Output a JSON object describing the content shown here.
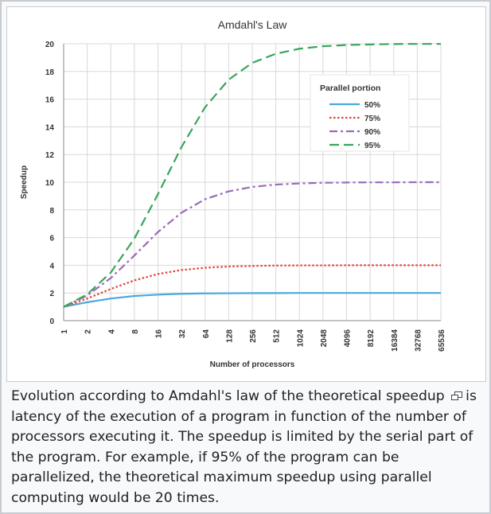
{
  "chart_data": {
    "type": "line",
    "title": "Amdahl's Law",
    "xlabel": "Number of processors",
    "ylabel": "Speedup",
    "x_scale": "log2",
    "x": [
      1,
      2,
      4,
      8,
      16,
      32,
      64,
      128,
      256,
      512,
      1024,
      2048,
      4096,
      8192,
      16384,
      32768,
      65536
    ],
    "x_tick_labels": [
      "1",
      "2",
      "4",
      "8",
      "16",
      "32",
      "64",
      "128",
      "256",
      "512",
      "1024",
      "2048",
      "4096",
      "8192",
      "16384",
      "32768",
      "65536"
    ],
    "ylim": [
      0,
      20
    ],
    "y_ticks": [
      0,
      2,
      4,
      6,
      8,
      10,
      12,
      14,
      16,
      18,
      20
    ],
    "y_tick_labels": [
      "0",
      "2",
      "4",
      "6",
      "8",
      "10",
      "12",
      "14",
      "16",
      "18",
      "20"
    ],
    "grid": true,
    "legend": {
      "title": "Parallel portion",
      "position": "top-right"
    },
    "series": [
      {
        "name": "50%",
        "color": "#4aa8dd",
        "style": "solid",
        "values": [
          1,
          1.33,
          1.6,
          1.78,
          1.88,
          1.94,
          1.97,
          1.98,
          1.99,
          1.99,
          2,
          2,
          2,
          2,
          2,
          2,
          2
        ]
      },
      {
        "name": "75%",
        "color": "#e0443c",
        "style": "dotted",
        "values": [
          1,
          1.6,
          2.29,
          2.91,
          3.37,
          3.66,
          3.82,
          3.91,
          3.95,
          3.98,
          3.99,
          3.99,
          4,
          4,
          4,
          4,
          4
        ]
      },
      {
        "name": "90%",
        "color": "#9b6ab8",
        "style": "dashdot",
        "values": [
          1,
          1.82,
          3.08,
          4.71,
          6.4,
          7.8,
          8.77,
          9.34,
          9.66,
          9.83,
          9.91,
          9.96,
          9.98,
          9.99,
          9.99,
          10,
          10
        ]
      },
      {
        "name": "95%",
        "color": "#3aa55a",
        "style": "dashed",
        "values": [
          1,
          1.9,
          3.48,
          5.93,
          9.14,
          12.55,
          15.42,
          17.41,
          18.62,
          19.28,
          19.64,
          19.82,
          19.91,
          19.95,
          19.98,
          19.99,
          19.99
        ]
      }
    ]
  },
  "caption": "Evolution according to Amdahl's law of the theoretical speedup is latency of the execution of a program in function of the number of processors executing it. The speedup is limited by the serial part of the program. For example, if 95% of the program can be parallelized, the theoretical maximum speedup using parallel computing would be 20 times."
}
